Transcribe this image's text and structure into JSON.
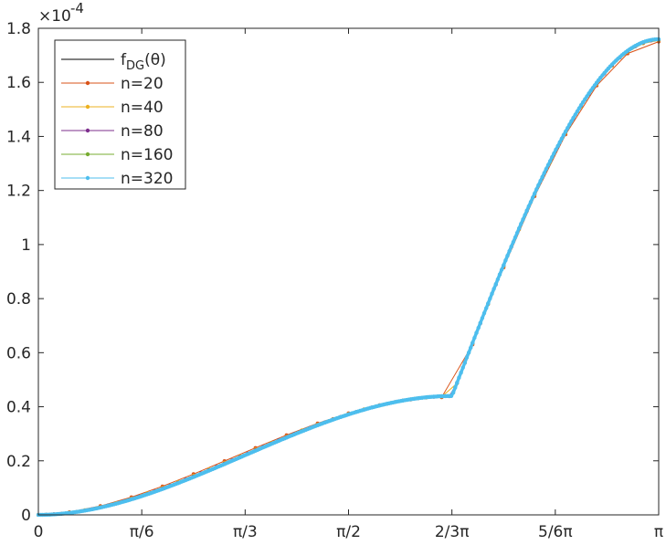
{
  "chart_data": {
    "type": "line",
    "title": "",
    "xlabel": "",
    "ylabel": "",
    "x_domain": [
      0,
      6
    ],
    "x_ticks": [
      {
        "pos": 0,
        "label": "0"
      },
      {
        "pos": 1,
        "label": "π/6"
      },
      {
        "pos": 2,
        "label": "π/3"
      },
      {
        "pos": 3,
        "label": "π/2"
      },
      {
        "pos": 4,
        "label": "2/3π"
      },
      {
        "pos": 5,
        "label": "5/6π"
      },
      {
        "pos": 6,
        "label": "π"
      }
    ],
    "y_scale_exponent_label": "×10",
    "y_scale_exponent_power": "-4",
    "ylim": [
      0,
      1.8
    ],
    "y_ticks": [
      {
        "value": 0,
        "label": "0"
      },
      {
        "value": 0.2,
        "label": "0.2"
      },
      {
        "value": 0.4,
        "label": "0.4"
      },
      {
        "value": 0.6,
        "label": "0.6"
      },
      {
        "value": 0.8,
        "label": "0.8"
      },
      {
        "value": 1.0,
        "label": "1"
      },
      {
        "value": 1.2,
        "label": "1.2"
      },
      {
        "value": 1.4,
        "label": "1.4"
      },
      {
        "value": 1.6,
        "label": "1.6"
      },
      {
        "value": 1.8,
        "label": "1.8"
      }
    ],
    "grid": false,
    "legend_position": "top-left",
    "series": [
      {
        "name": "f",
        "name_sub": "DG",
        "name_suffix": "(θ)",
        "color": "#000000",
        "n": 0
      },
      {
        "name": "n=20",
        "color": "#D95319",
        "n": 20
      },
      {
        "name": "n=40",
        "color": "#EDB120",
        "n": 40
      },
      {
        "name": "n=80",
        "color": "#7E2F8E",
        "n": 80
      },
      {
        "name": "n=160",
        "color": "#77AC30",
        "n": 160
      },
      {
        "name": "n=320",
        "color": "#4DBEEE",
        "n": 320
      }
    ]
  }
}
